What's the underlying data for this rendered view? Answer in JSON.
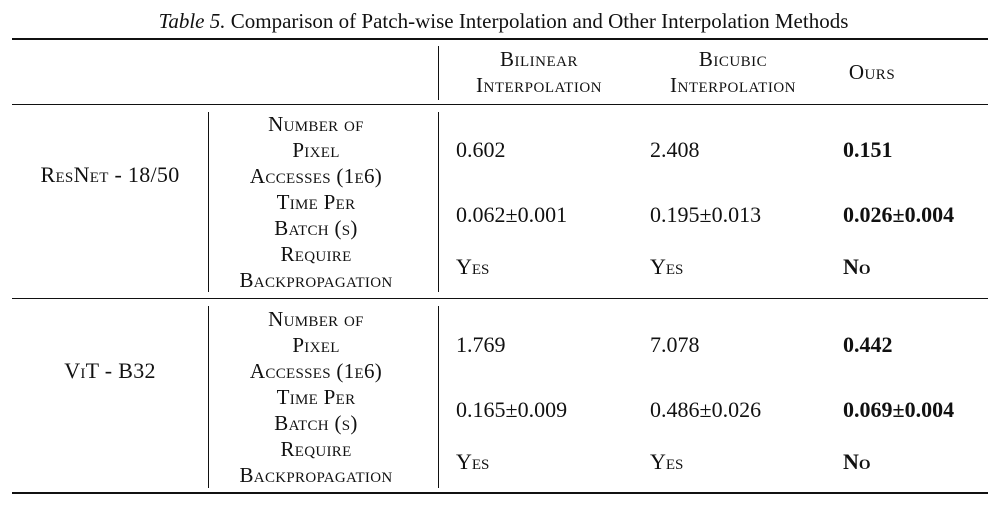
{
  "caption": {
    "label": "Table 5.",
    "text": "Comparison of Patch-wise Interpolation and Other Interpolation Methods"
  },
  "header": {
    "col1_line1": "Bilinear",
    "col1_line2": "Interpolation",
    "col2_line1": "Bicubic",
    "col2_line2": "Interpolation",
    "col3": "Ours"
  },
  "groups": [
    {
      "model": "ResNet - 18/50",
      "rows": [
        {
          "metric_line1": "Number of",
          "metric_line2": "Pixel",
          "metric_line3": "Accesses (1e6)",
          "bilinear": "0.602",
          "bicubic": "2.408",
          "ours": "0.151"
        },
        {
          "metric_line1": "Time Per",
          "metric_line2": "Batch (s)",
          "bilinear": "0.062±0.001",
          "bicubic": "0.195±0.013",
          "ours": "0.026±0.004"
        },
        {
          "metric_line1": "Require",
          "metric_line2": "Backpropagation",
          "bilinear": "Yes",
          "bicubic": "Yes",
          "ours": "No"
        }
      ]
    },
    {
      "model": "ViT - B32",
      "rows": [
        {
          "metric_line1": "Number of",
          "metric_line2": "Pixel",
          "metric_line3": "Accesses (1e6)",
          "bilinear": "1.769",
          "bicubic": "7.078",
          "ours": "0.442"
        },
        {
          "metric_line1": "Time Per",
          "metric_line2": "Batch (s)",
          "bilinear": "0.165±0.009",
          "bicubic": "0.486±0.026",
          "ours": "0.069±0.004"
        },
        {
          "metric_line1": "Require",
          "metric_line2": "Backpropagation",
          "bilinear": "Yes",
          "bicubic": "Yes",
          "ours": "No"
        }
      ]
    }
  ]
}
